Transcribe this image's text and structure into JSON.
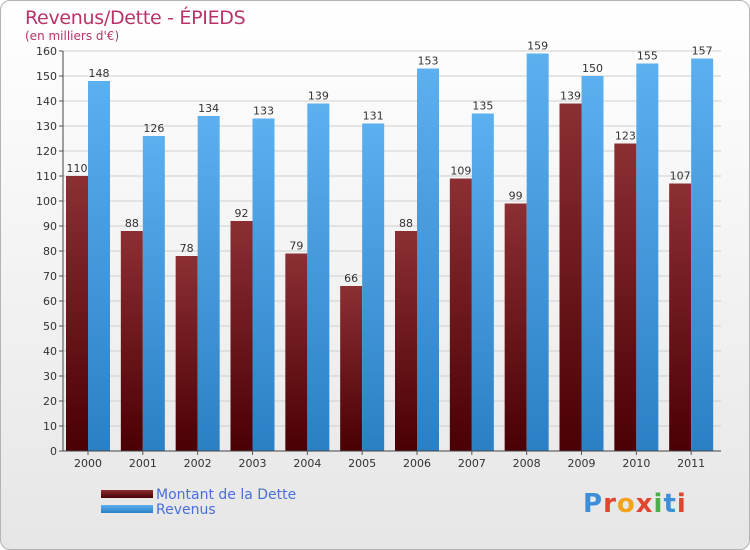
{
  "chart_data": {
    "type": "bar",
    "title": "Revenus/Dette - ÉPIEDS",
    "subtitle": "(en milliers d'€)",
    "categories": [
      "2000",
      "2001",
      "2002",
      "2003",
      "2004",
      "2005",
      "2006",
      "2007",
      "2008",
      "2009",
      "2010",
      "2011"
    ],
    "series": [
      {
        "name": "Montant de la Dette",
        "color": "#7a1b1e",
        "values": [
          110,
          88,
          78,
          92,
          79,
          66,
          88,
          109,
          99,
          139,
          123,
          107
        ]
      },
      {
        "name": "Revenus",
        "color": "#4da3e8",
        "values": [
          148,
          126,
          134,
          133,
          139,
          131,
          153,
          135,
          159,
          150,
          155,
          157
        ]
      }
    ],
    "ylim": [
      0,
      160
    ],
    "yticks": [
      0,
      10,
      20,
      30,
      40,
      50,
      60,
      70,
      80,
      90,
      100,
      110,
      120,
      130,
      140,
      150,
      160
    ],
    "grid": true,
    "legend_position": "bottom-left"
  },
  "logo": {
    "text": "Proxiti"
  }
}
